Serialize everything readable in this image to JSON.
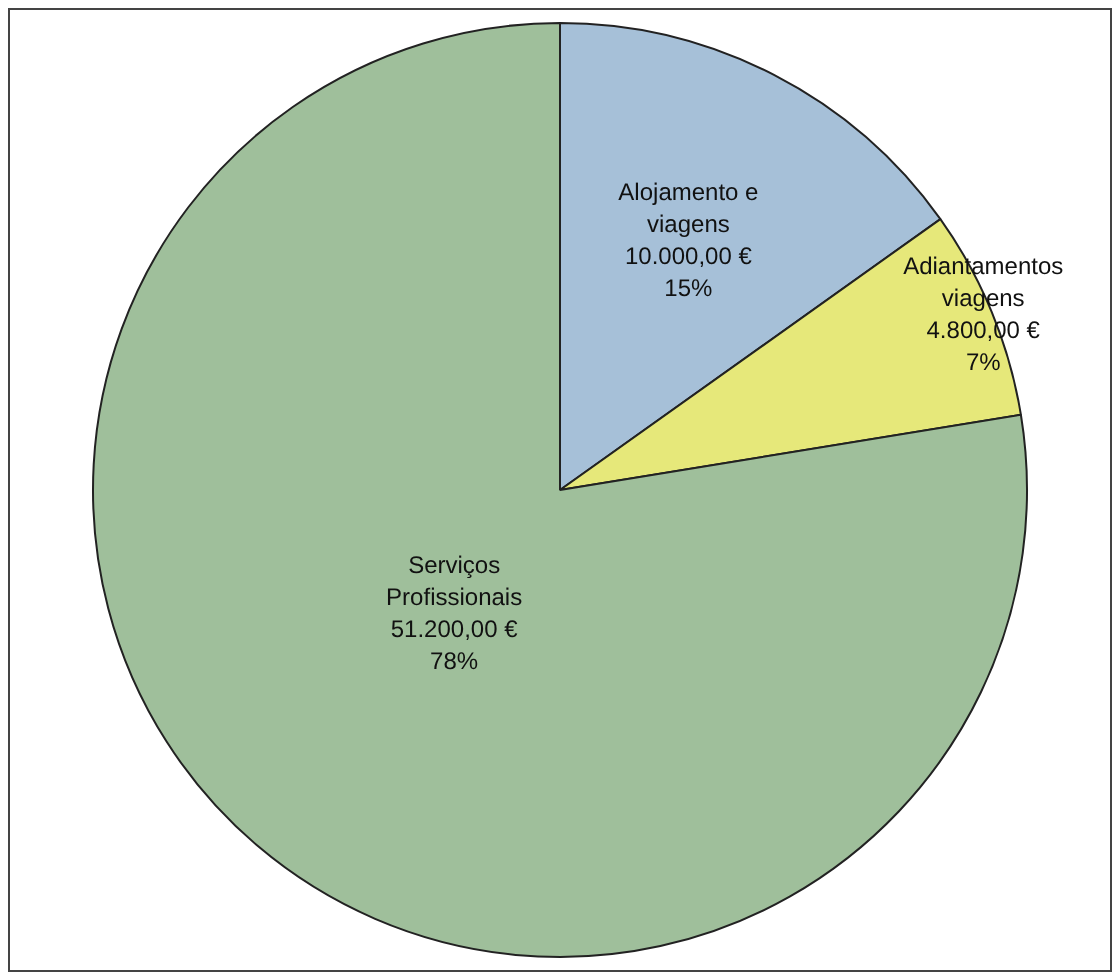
{
  "chart_data": {
    "type": "pie",
    "categories": [
      "Alojamento e viagens",
      "Adiantamentos viagens",
      "Serviços Profissionais"
    ],
    "values": [
      10000,
      4800,
      51200
    ],
    "colors": [
      "#a6c0d8",
      "#e6e87a",
      "#9fbf9b"
    ],
    "value_labels": [
      "10.000,00 €\n15%",
      "4.800,00 €\n7%",
      "51.200,00 €\n78%"
    ],
    "legend": false
  }
}
